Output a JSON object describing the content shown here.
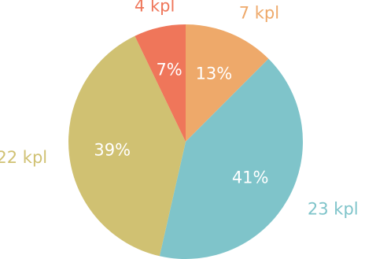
{
  "chart_data": {
    "type": "pie",
    "start_angle_deg": 0,
    "direction": "clockwise",
    "slices": [
      {
        "label": "7 kpl",
        "value": 7,
        "percent_label": "13%",
        "color": "#EEA96A"
      },
      {
        "label": "23 kpl",
        "value": 23,
        "percent_label": "41%",
        "color": "#7FC4CA"
      },
      {
        "label": "22 kpl",
        "value": 22,
        "percent_label": "39%",
        "color": "#D0C172"
      },
      {
        "label": "4 kpl",
        "value": 4,
        "percent_label": "7%",
        "color": "#EF765A"
      }
    ]
  }
}
